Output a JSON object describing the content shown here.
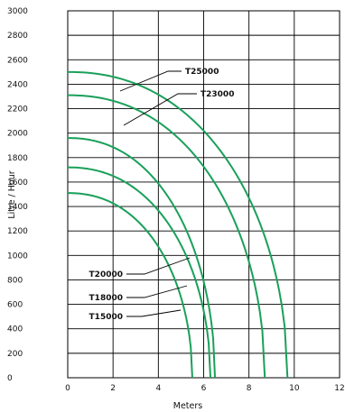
{
  "chart_data": {
    "type": "line",
    "title": "",
    "xlabel": "Meters",
    "ylabel": "Litre / Hour",
    "xlim": [
      0,
      12
    ],
    "ylim": [
      0,
      3000
    ],
    "x_ticks": [
      0,
      2,
      4,
      6,
      8,
      10,
      12
    ],
    "x_tick_labels": [
      "0",
      "2",
      "4",
      "6",
      "8",
      "10",
      "12"
    ],
    "y_ticks": [
      0,
      200,
      400,
      600,
      800,
      1000,
      1200,
      1400,
      1600,
      1800,
      2000,
      2200,
      2400,
      2600,
      2800,
      3000
    ],
    "y_tick_labels": [
      "0",
      "200",
      "400",
      "600",
      "800",
      "1000",
      "1200",
      "1400",
      "1600",
      "1800",
      "2000",
      "2200",
      "2400",
      "2600",
      "2800",
      "3000"
    ],
    "grid": true,
    "line_color": "#1aa05a",
    "series": [
      {
        "name": "T25000",
        "max_flow": 2500,
        "max_head": 9.7,
        "x": [
          0,
          2,
          4,
          6,
          7,
          8,
          9,
          9.7
        ],
        "y": [
          2500,
          2390,
          2050,
          1500,
          1180,
          800,
          430,
          0
        ]
      },
      {
        "name": "T23000",
        "max_flow": 2310,
        "max_head": 8.7,
        "x": [
          0,
          2,
          4,
          6,
          7,
          8,
          8.7
        ],
        "y": [
          2310,
          2170,
          1800,
          1210,
          850,
          440,
          0
        ]
      },
      {
        "name": "T20000",
        "max_flow": 1960,
        "max_head": 6.5,
        "x": [
          0,
          1,
          2,
          3,
          4,
          5,
          6,
          6.5
        ],
        "y": [
          1960,
          1920,
          1800,
          1640,
          1400,
          1060,
          520,
          0
        ]
      },
      {
        "name": "T18000",
        "max_flow": 1720,
        "max_head": 6.3,
        "x": [
          0,
          1,
          2,
          3,
          4,
          5,
          6,
          6.3
        ],
        "y": [
          1720,
          1670,
          1540,
          1360,
          1130,
          800,
          300,
          0
        ]
      },
      {
        "name": "T15000",
        "max_flow": 1510,
        "max_head": 5.5,
        "x": [
          0,
          1,
          2,
          3,
          4,
          5,
          5.5
        ],
        "y": [
          1510,
          1460,
          1330,
          1130,
          880,
          460,
          0
        ]
      }
    ],
    "legend": "inline labels with leader lines"
  }
}
